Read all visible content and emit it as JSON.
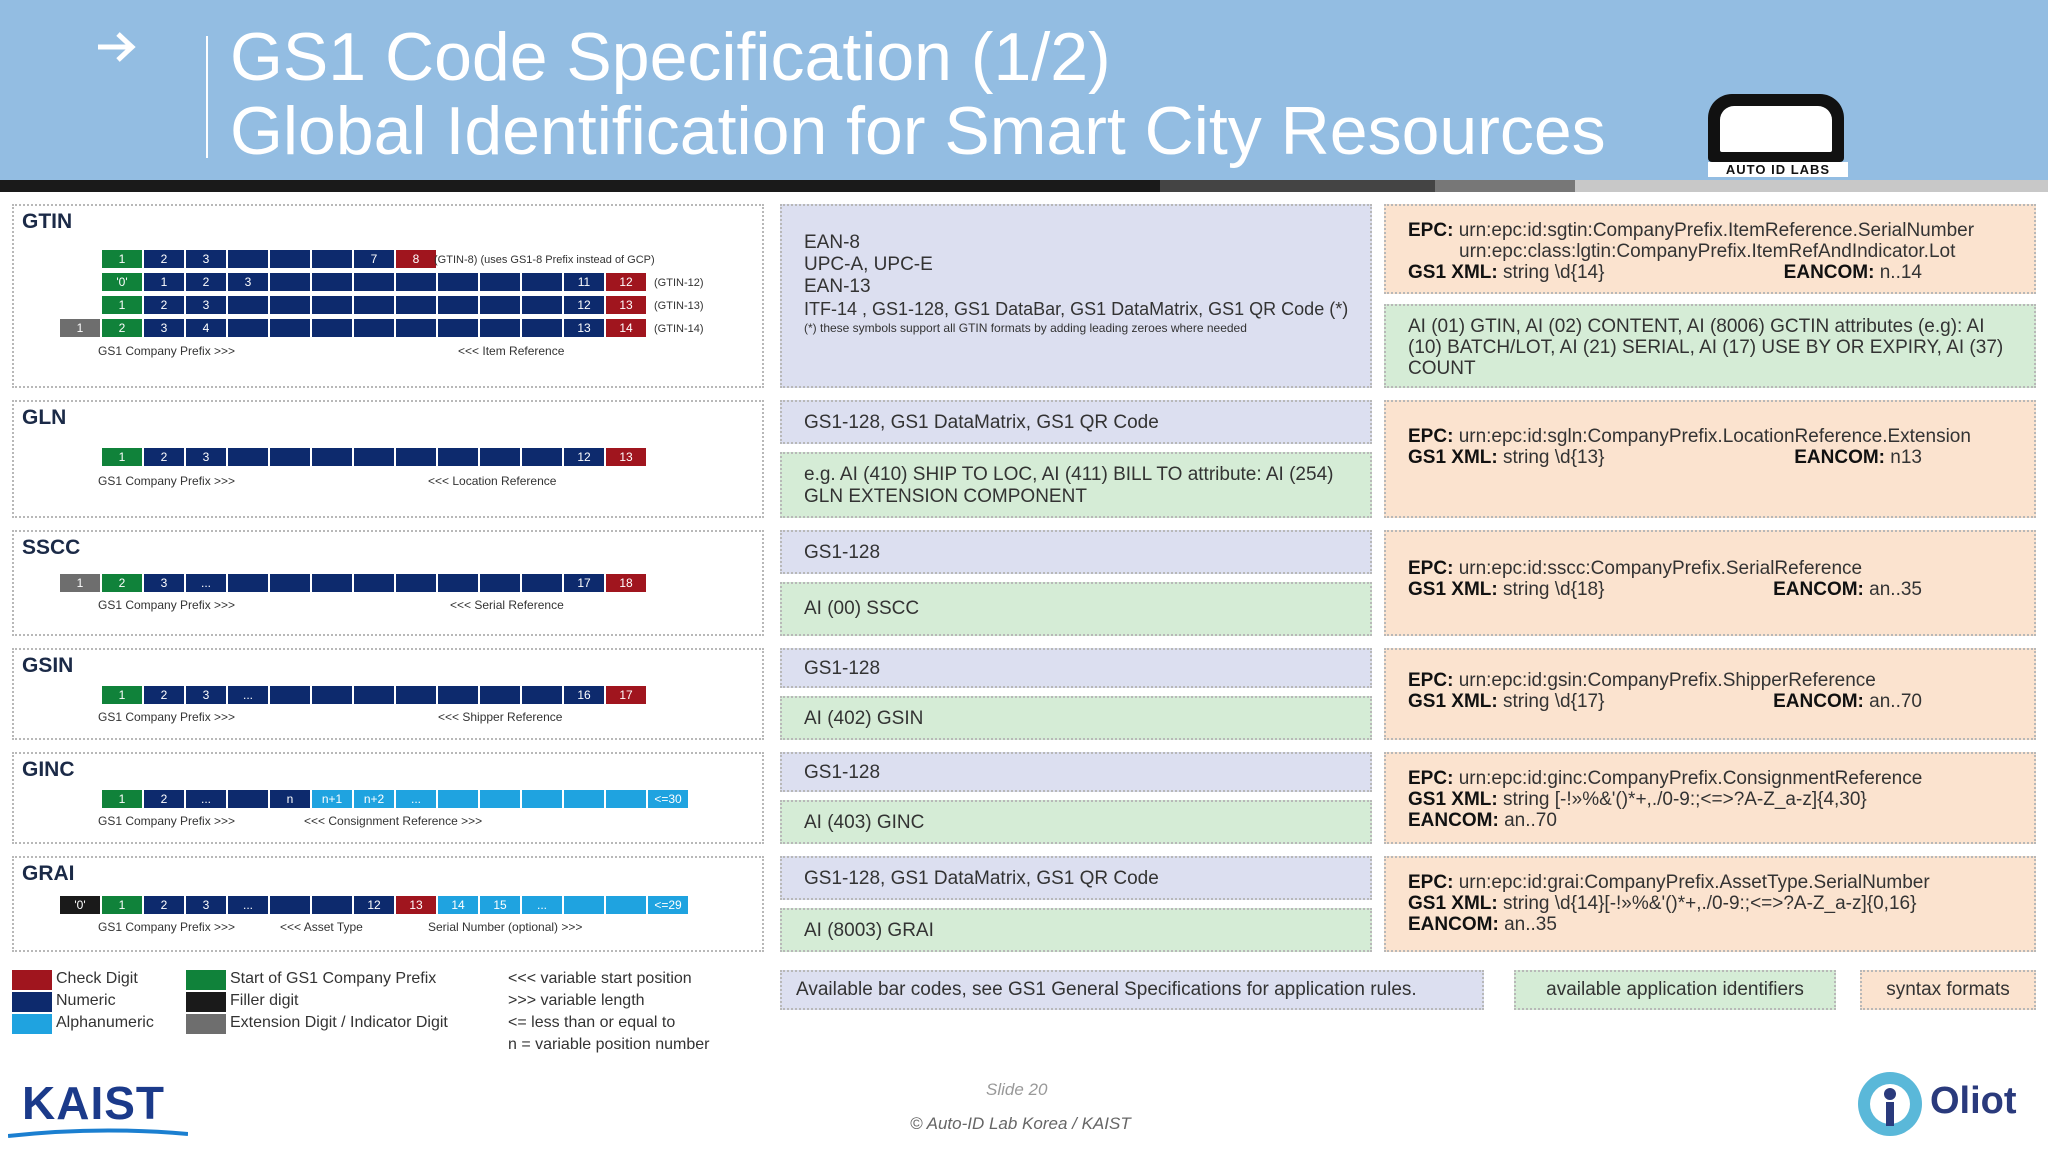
{
  "header": {
    "title_line1": "GS1 Code Specification (1/2)",
    "title_line2": "Global Identification for Smart City Resources",
    "logo_text": "AUTO  ID LABS"
  },
  "rows": [
    {
      "id": "gtin",
      "label": "GTIN",
      "cells": [
        [
          "1",
          "2",
          "3",
          "",
          "",
          "",
          "7",
          "8"
        ],
        [
          "'0'",
          "1",
          "2",
          "3",
          "",
          "",
          "",
          "",
          "",
          "",
          "",
          "11",
          "12"
        ],
        [
          "1",
          "2",
          "3",
          "",
          "",
          "",
          "",
          "",
          "",
          "",
          "",
          "12",
          "13"
        ],
        [
          "1",
          "2",
          "3",
          "4",
          "",
          "",
          "",
          "",
          "",
          "",
          "",
          "",
          "13",
          "14"
        ]
      ],
      "variants": [
        "(GTIN-8) (uses GS1-8 Prefix instead of GCP)",
        "(GTIN-12)",
        "(GTIN-13)",
        "(GTIN-14)"
      ],
      "caption_left": "GS1 Company Prefix >>>",
      "caption_right": "<<< Item Reference",
      "barcodes": [
        "EAN-8",
        "UPC-A, UPC-E",
        "EAN-13",
        "ITF-14 , GS1-128, GS1 DataBar, GS1 DataMatrix, GS1 QR Code (*)"
      ],
      "barcode_note": "(*) these symbols support all GTIN formats by adding leading zeroes where needed",
      "epc_line1": "urn:epc:id:sgtin:CompanyPrefix.ItemReference.SerialNumber",
      "epc_line2": "urn:epc:class:lgtin:CompanyPrefix.ItemRefAndIndicator.Lot",
      "xml": "string \\d{14}",
      "eancom": "n..14",
      "ai": "AI (01) GTIN, AI (02) CONTENT, AI (8006) GCTIN attributes (e.g): AI (10) BATCH/LOT, AI (21) SERIAL, AI (17) USE BY OR EXPIRY, AI (37) COUNT"
    },
    {
      "id": "gln",
      "label": "GLN",
      "cells": [
        "1",
        "2",
        "3",
        "",
        "",
        "",
        "",
        "",
        "",
        "",
        "",
        "12",
        "13"
      ],
      "caption_left": "GS1 Company Prefix >>>",
      "caption_right": "<<< Location Reference",
      "barcode": "GS1-128, GS1 DataMatrix, GS1 QR Code",
      "ai": "e.g. AI (410) SHIP TO LOC, AI (411) BILL TO attribute: AI (254) GLN EXTENSION COMPONENT",
      "epc": "urn:epc:id:sgln:CompanyPrefix.LocationReference.Extension",
      "xml": "string \\d{13}",
      "eancom": "n13"
    },
    {
      "id": "sscc",
      "label": "SSCC",
      "cells": [
        "1",
        "2",
        "3",
        "...",
        "",
        "",
        "",
        "",
        "",
        "",
        "",
        "",
        "",
        "17",
        "18"
      ],
      "caption_left": "GS1 Company Prefix >>>",
      "caption_right": "<<< Serial Reference",
      "barcode": "GS1-128",
      "ai": "AI (00) SSCC",
      "epc": "urn:epc:id:sscc:CompanyPrefix.SerialReference",
      "xml": "string \\d{18}",
      "eancom": "an..35"
    },
    {
      "id": "gsin",
      "label": "GSIN",
      "cells": [
        "1",
        "2",
        "3",
        "...",
        "",
        "",
        "",
        "",
        "",
        "",
        "",
        "",
        "16",
        "17"
      ],
      "caption_left": "GS1 Company Prefix >>>",
      "caption_right": "<<< Shipper Reference",
      "barcode": "GS1-128",
      "ai": "AI (402) GSIN",
      "epc": "urn:epc:id:gsin:CompanyPrefix.ShipperReference",
      "xml": "string \\d{17}",
      "eancom": "an..70"
    },
    {
      "id": "ginc",
      "label": "GINC",
      "cells": [
        "1",
        "2",
        "...",
        "",
        "n",
        "n+1",
        "n+2",
        "...",
        "",
        "",
        "",
        "",
        "",
        "",
        "<=30"
      ],
      "caption_left": "GS1 Company Prefix >>>",
      "caption_right": "<<< Consignment Reference >>>",
      "barcode": "GS1-128",
      "ai": "AI (403) GINC",
      "epc": "urn:epc:id:ginc:CompanyPrefix.ConsignmentReference",
      "xml": "string [-!»%&'()*+,./0-9:;<=>?A-Z_a-z]{4,30}",
      "eancom": "an..70"
    },
    {
      "id": "grai",
      "label": "GRAI",
      "cells": [
        "'0'",
        "1",
        "2",
        "3",
        "...",
        "",
        "",
        "12",
        "13",
        "14",
        "15",
        "...",
        "",
        "",
        "<=29"
      ],
      "caption_left": "GS1 Company Prefix >>>",
      "caption_mid": "<<< Asset Type",
      "caption_right": "Serial Number (optional) >>>",
      "barcode": "GS1-128, GS1 DataMatrix, GS1 QR Code",
      "ai": "AI (8003) GRAI",
      "epc": "urn:epc:id:grai:CompanyPrefix.AssetType.SerialNumber",
      "xml": "string \\d{14}[-!»%&'()*+,./0-9:;<=>?A-Z_a-z]{0,16}",
      "eancom": "an..35"
    }
  ],
  "labels": {
    "epc": "EPC:",
    "xml": "GS1 XML:",
    "eancom": "EANCOM:"
  },
  "legend": {
    "check_digit": "Check Digit",
    "numeric": "Numeric",
    "alphanumeric": "Alphanumeric",
    "start_prefix": "Start of GS1 Company Prefix",
    "filler": "Filler digit",
    "extension": "Extension Digit / Indicator Digit",
    "var_start": "<<<  variable start position",
    "var_len": ">>>  variable length",
    "lte": "<= less than or equal to",
    "n_var": "n = variable position number"
  },
  "legend_boxes": {
    "barcodes": "Available bar codes, see GS1 General Specifications for application rules.",
    "ais": "available application identifiers",
    "syntax": "syntax formats"
  },
  "footer": {
    "slide": "Slide 20",
    "copyright": "© Auto-ID Lab Korea / KAIST",
    "kaist": "KAIST",
    "oliot": "Oliot"
  },
  "colors": {
    "header_bg": "#93bde2",
    "check_digit": "#a0151e",
    "numeric": "#0d2a6d",
    "alphanumeric": "#1fa3e0",
    "start_prefix": "#10823a",
    "filler": "#1a1a1a",
    "extension": "#6e6e6e"
  }
}
